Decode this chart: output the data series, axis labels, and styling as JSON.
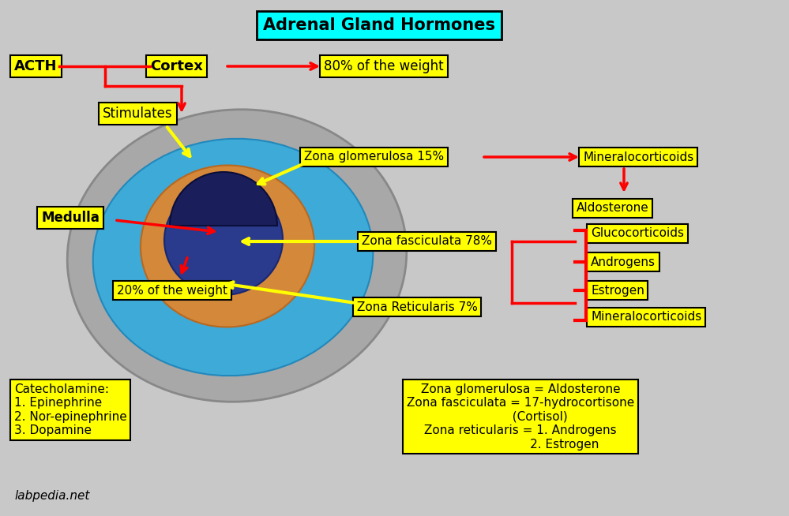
{
  "bg_color": "#c8c8c8",
  "title_text": "Adrenal Gland Hormones",
  "title_bg": "#00ffff",
  "label_bg": "#ffff00",
  "label_border": "#000000",
  "arrow_color": "#ff0000",
  "yellow_line_color": "#ffff00",
  "text_color": "#000000",
  "acth": "ACTH",
  "cortex": "Cortex",
  "weight80": "80% of the weight",
  "stimulates": "Stimulates",
  "zona_glom": "Zona glomerulosa 15%",
  "mineralocorticoids_top": "Mineralocorticoids",
  "aldosterone": "Aldosterone",
  "zona_fasc": "Zona fasciculata 78%",
  "zona_retic": "Zona Reticularis 7%",
  "glucocorticoids": "Glucocorticoids",
  "androgens": "Androgens",
  "estrogen": "Estrogen",
  "mineralocorticoids_bot": "Mineralocorticoids",
  "medulla": "Medulla",
  "weight20": "20% of the weight",
  "catecholamine": "Catecholamine:\n1. Epinephrine\n2. Nor-epinephrine\n3. Dopamine",
  "summary": "Zona glomerulosa = Aldosterone\nZona fasciculata = 17-hydrocortisone\n          (Cortisol)\nZona reticularis = 1. Androgens\n                       2. Estrogen",
  "watermark": "labpedia.net",
  "outer_gray": "#a8a8a8",
  "outer_gray_edge": "#888888",
  "cortex_blue": "#3daad8",
  "cortex_blue_edge": "#2288bb",
  "zona_fasc_orange": "#d4883a",
  "zona_fasc_edge": "#b86820",
  "zona_retic_darkblue": "#2a3a8c",
  "zona_retic_edge": "#1a2870",
  "medulla_navy": "#1a1e5a",
  "medulla_edge": "#0a0e3a"
}
